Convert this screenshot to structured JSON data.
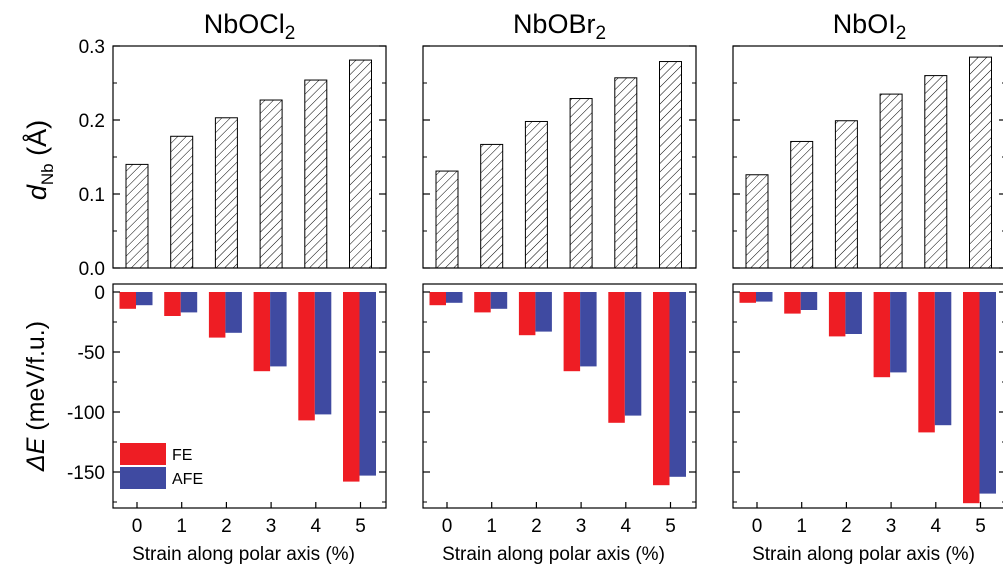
{
  "colors": {
    "fe": "#ee1d24",
    "afe": "#3f4aa1",
    "hatch_stroke": "#000000"
  },
  "ylabels": {
    "top_symbol": "d",
    "top_subscript": "Nb",
    "top_unit": " (Å)",
    "bottom_symbol": "ΔE",
    "bottom_unit": " (meV/f.u.)"
  },
  "legend": {
    "fe": "FE",
    "afe": "AFE",
    "placement": "lower-left of first bottom panel"
  },
  "chart_data": [
    {
      "type": "bar",
      "panel": "NbOCl2 displacement",
      "title": "NbOCl",
      "title_sub": "2",
      "categories": [
        "0",
        "1",
        "2",
        "3",
        "4",
        "5"
      ],
      "values": [
        0.14,
        0.178,
        0.203,
        0.227,
        0.254,
        0.281
      ],
      "ylim": [
        0,
        0.3
      ],
      "yticks": [
        "0.0",
        "0.1",
        "0.2",
        "0.3"
      ],
      "fill": "hatched"
    },
    {
      "type": "bar",
      "panel": "NbOBr2 displacement",
      "title": "NbOBr",
      "title_sub": "2",
      "categories": [
        "0",
        "1",
        "2",
        "3",
        "4",
        "5"
      ],
      "values": [
        0.131,
        0.167,
        0.198,
        0.229,
        0.257,
        0.279
      ],
      "ylim": [
        0,
        0.3
      ]
    },
    {
      "type": "bar",
      "panel": "NbOI2 displacement",
      "title": "NbOI",
      "title_sub": "2",
      "categories": [
        "0",
        "1",
        "2",
        "3",
        "4",
        "5"
      ],
      "values": [
        0.126,
        0.171,
        0.199,
        0.235,
        0.26,
        0.285
      ],
      "ylim": [
        0,
        0.3
      ]
    },
    {
      "type": "bar",
      "panel": "NbOCl2 energy",
      "xlabel": "Strain along polar axis (%)",
      "categories": [
        "0",
        "1",
        "2",
        "3",
        "4",
        "5"
      ],
      "series": [
        {
          "name": "FE",
          "values": [
            -14,
            -20,
            -38,
            -66,
            -107,
            -158
          ]
        },
        {
          "name": "AFE",
          "values": [
            -11,
            -17,
            -34,
            -62,
            -102,
            -153
          ]
        }
      ],
      "ylim": [
        -180,
        0
      ],
      "yticks": [
        "0",
        "-50",
        "-100",
        "-150"
      ]
    },
    {
      "type": "bar",
      "panel": "NbOBr2 energy",
      "xlabel": "Strain along polar axis (%)",
      "categories": [
        "0",
        "1",
        "2",
        "3",
        "4",
        "5"
      ],
      "series": [
        {
          "name": "FE",
          "values": [
            -11,
            -17,
            -36,
            -66,
            -109,
            -161
          ]
        },
        {
          "name": "AFE",
          "values": [
            -9,
            -14,
            -33,
            -62,
            -103,
            -154
          ]
        }
      ],
      "ylim": [
        -180,
        0
      ]
    },
    {
      "type": "bar",
      "panel": "NbOI2 energy",
      "xlabel": "Strain along polar axis (%)",
      "categories": [
        "0",
        "1",
        "2",
        "3",
        "4",
        "5"
      ],
      "series": [
        {
          "name": "FE",
          "values": [
            -9,
            -18,
            -37,
            -71,
            -117,
            -176
          ]
        },
        {
          "name": "AFE",
          "values": [
            -8,
            -15,
            -35,
            -67,
            -111,
            -168
          ]
        }
      ],
      "ylim": [
        -180,
        0
      ]
    }
  ]
}
